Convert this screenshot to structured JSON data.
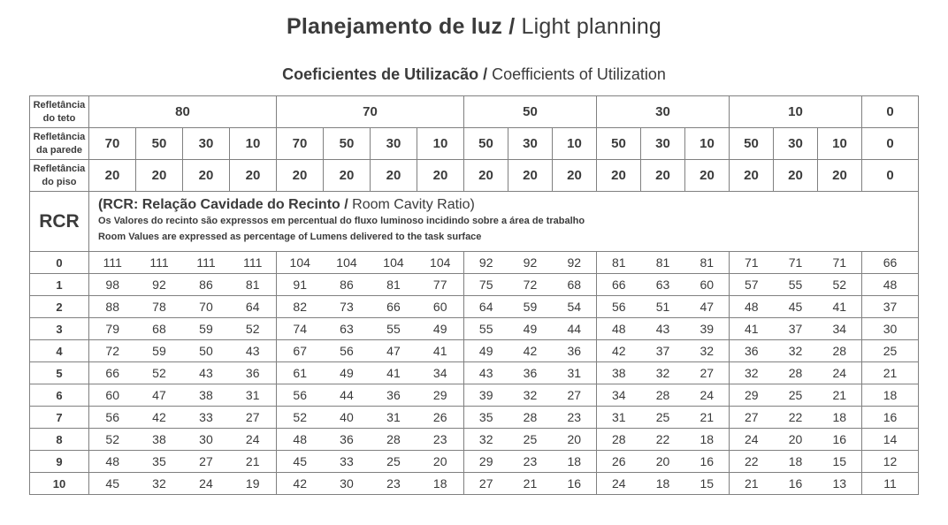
{
  "page": {
    "title": {
      "bold": "Planejamento de luz /",
      "regular": " Light planning"
    },
    "subtitle": {
      "bold": "Coeficientes de Utilizacão /",
      "regular": " Coefficients of Utilization"
    }
  },
  "table": {
    "row_labels": {
      "ceiling": {
        "line1": "Refletância",
        "line2": "do teto"
      },
      "wall": {
        "line1": "Refletância",
        "line2": "da parede"
      },
      "floor": {
        "line1": "Refletância",
        "line2": "do piso"
      },
      "rcr": "RCR"
    },
    "ceiling_groups": [
      {
        "label": "80",
        "span": 4
      },
      {
        "label": "70",
        "span": 4
      },
      {
        "label": "50",
        "span": 3
      },
      {
        "label": "30",
        "span": 3
      },
      {
        "label": "10",
        "span": 3
      },
      {
        "label": "0",
        "span": 1
      }
    ],
    "wall_values": [
      "70",
      "50",
      "30",
      "10",
      "70",
      "50",
      "30",
      "10",
      "50",
      "30",
      "10",
      "50",
      "30",
      "10",
      "50",
      "30",
      "10",
      "0"
    ],
    "floor_values": [
      "20",
      "20",
      "20",
      "20",
      "20",
      "20",
      "20",
      "20",
      "20",
      "20",
      "20",
      "20",
      "20",
      "20",
      "20",
      "20",
      "20",
      "0"
    ],
    "rcr_note": {
      "line1_bold": "(RCR: Relação Cavidade do Recinto /",
      "line1_regular": " Room Cavity Ratio)",
      "line2": "Os Valores do recinto são expressos em percentual do fluxo luminoso incidindo sobre a área de trabalho",
      "line3": "Room Values are expressed as percentage of Lumens delivered to the task surface"
    },
    "rows": [
      {
        "rcr": "0",
        "values": [
          111,
          111,
          111,
          111,
          104,
          104,
          104,
          104,
          92,
          92,
          92,
          81,
          81,
          81,
          71,
          71,
          71,
          66
        ]
      },
      {
        "rcr": "1",
        "values": [
          98,
          92,
          86,
          81,
          91,
          86,
          81,
          77,
          75,
          72,
          68,
          66,
          63,
          60,
          57,
          55,
          52,
          48
        ]
      },
      {
        "rcr": "2",
        "values": [
          88,
          78,
          70,
          64,
          82,
          73,
          66,
          60,
          64,
          59,
          54,
          56,
          51,
          47,
          48,
          45,
          41,
          37
        ]
      },
      {
        "rcr": "3",
        "values": [
          79,
          68,
          59,
          52,
          74,
          63,
          55,
          49,
          55,
          49,
          44,
          48,
          43,
          39,
          41,
          37,
          34,
          30
        ]
      },
      {
        "rcr": "4",
        "values": [
          72,
          59,
          50,
          43,
          67,
          56,
          47,
          41,
          49,
          42,
          36,
          42,
          37,
          32,
          36,
          32,
          28,
          25
        ]
      },
      {
        "rcr": "5",
        "values": [
          66,
          52,
          43,
          36,
          61,
          49,
          41,
          34,
          43,
          36,
          31,
          38,
          32,
          27,
          32,
          28,
          24,
          21
        ]
      },
      {
        "rcr": "6",
        "values": [
          60,
          47,
          38,
          31,
          56,
          44,
          36,
          29,
          39,
          32,
          27,
          34,
          28,
          24,
          29,
          25,
          21,
          18
        ]
      },
      {
        "rcr": "7",
        "values": [
          56,
          42,
          33,
          27,
          52,
          40,
          31,
          26,
          35,
          28,
          23,
          31,
          25,
          21,
          27,
          22,
          18,
          16
        ]
      },
      {
        "rcr": "8",
        "values": [
          52,
          38,
          30,
          24,
          48,
          36,
          28,
          23,
          32,
          25,
          20,
          28,
          22,
          18,
          24,
          20,
          16,
          14
        ]
      },
      {
        "rcr": "9",
        "values": [
          48,
          35,
          27,
          21,
          45,
          33,
          25,
          20,
          29,
          23,
          18,
          26,
          20,
          16,
          22,
          18,
          15,
          12
        ]
      },
      {
        "rcr": "10",
        "values": [
          45,
          32,
          24,
          19,
          42,
          30,
          23,
          18,
          27,
          21,
          16,
          24,
          18,
          15,
          21,
          16,
          13,
          11
        ]
      }
    ],
    "colors": {
      "border": "#808080",
      "text": "#3b3b3b"
    }
  }
}
